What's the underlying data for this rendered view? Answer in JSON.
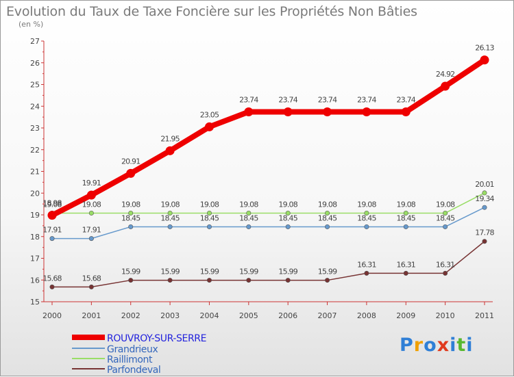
{
  "title": "Evolution du Taux de Taxe Foncière sur les Propriétés Non Bâties",
  "unit": "(en %)",
  "brand": [
    "P",
    "r",
    "o",
    "x",
    "i",
    "t",
    "i"
  ],
  "brand_colors": [
    "#2f7fd6",
    "#f0a000",
    "#2f7fd6",
    "#e03a1e",
    "#2f7fd6",
    "#58b830",
    "#2f7fd6"
  ],
  "chart_data": {
    "type": "line",
    "x": [
      "2000",
      "2001",
      "2002",
      "2003",
      "2004",
      "2005",
      "2006",
      "2007",
      "2008",
      "2009",
      "2010",
      "2011"
    ],
    "ylim": [
      15,
      27
    ],
    "yticks": [
      "15",
      "16",
      "17",
      "18",
      "19",
      "20",
      "21",
      "22",
      "23",
      "24",
      "25",
      "26",
      "27"
    ],
    "grid": false,
    "legend": "bottom-left",
    "series": [
      {
        "name": "ROUVROY-SUR-SERRE",
        "color": "#ee0000",
        "label_color": "#2222dd",
        "values": [
          18.98,
          19.91,
          20.91,
          21.95,
          23.05,
          23.74,
          23.74,
          23.74,
          23.74,
          23.74,
          24.92,
          26.13
        ],
        "labels": [
          "18.98",
          "19.91",
          "20.91",
          "21.95",
          "23.05",
          "23.74",
          "23.74",
          "23.74",
          "23.74",
          "23.74",
          "24.92",
          "26.13"
        ]
      },
      {
        "name": "Grandrieux",
        "color": "#6699cc",
        "label_color": "#3366bb",
        "values": [
          17.91,
          17.91,
          18.45,
          18.45,
          18.45,
          18.45,
          18.45,
          18.45,
          18.45,
          18.45,
          18.45,
          19.34
        ],
        "labels": [
          "17.91",
          "17.91",
          "18.45",
          "18.45",
          "18.45",
          "18.45",
          "18.45",
          "18.45",
          "18.45",
          "18.45",
          "18.45",
          "19.34"
        ]
      },
      {
        "name": "Raillimont",
        "color": "#99dd66",
        "label_color": "#3366bb",
        "values": [
          19.08,
          19.08,
          19.08,
          19.08,
          19.08,
          19.08,
          19.08,
          19.08,
          19.08,
          19.08,
          19.08,
          20.01
        ],
        "labels": [
          "19.08",
          "19.08",
          "19.08",
          "19.08",
          "19.08",
          "19.08",
          "19.08",
          "19.08",
          "19.08",
          "19.08",
          "19.08",
          "20.01"
        ]
      },
      {
        "name": "Parfondeval",
        "color": "#773333",
        "label_color": "#3366bb",
        "values": [
          15.68,
          15.68,
          15.99,
          15.99,
          15.99,
          15.99,
          15.99,
          15.99,
          16.31,
          16.31,
          16.31,
          17.78
        ],
        "labels": [
          "15.68",
          "15.68",
          "15.99",
          "15.99",
          "15.99",
          "15.99",
          "15.99",
          "15.99",
          "16.31",
          "16.31",
          "16.31",
          "17.78"
        ]
      }
    ]
  }
}
